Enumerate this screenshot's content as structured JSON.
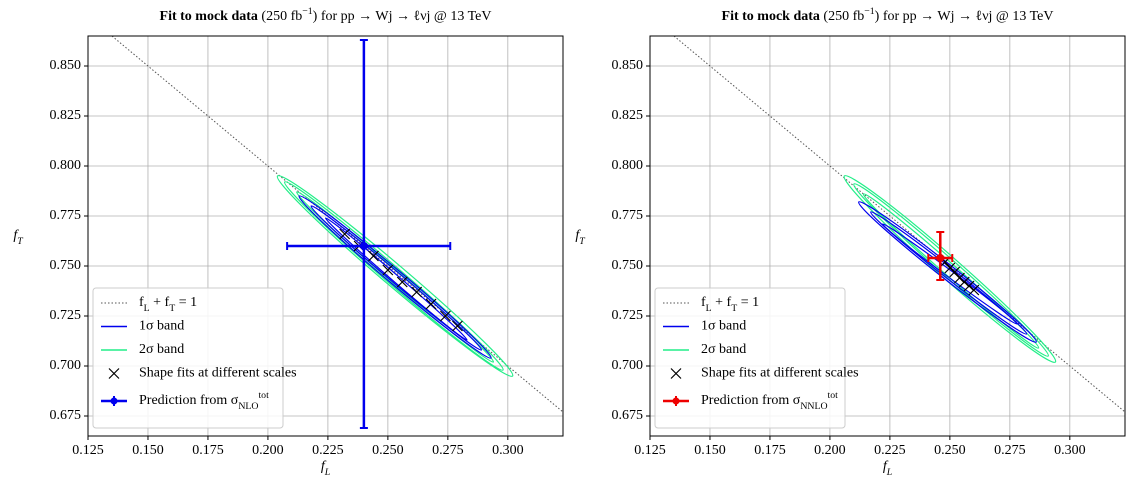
{
  "chart_data": [
    {
      "type": "contour",
      "title": "Fit to mock data",
      "title_note": "(250 fb^{−1}) for pp → Wj → ℓνj @ 13 TeV",
      "x_label": "f_L",
      "y_label": "f_T",
      "xlim": [
        0.125,
        0.323
      ],
      "ylim": [
        0.665,
        0.865
      ],
      "xticks": [
        0.125,
        {
          "value": 0.15,
          "label": "0.150"
        },
        0.175,
        {
          "value": 0.2,
          "label": "0.200"
        },
        0.225,
        {
          "value": 0.25,
          "label": "0.250"
        },
        0.275,
        {
          "value": 0.3,
          "label": "0.300"
        }
      ],
      "yticks": [
        0.675,
        {
          "value": 0.7,
          "label": "0.700"
        },
        0.725,
        {
          "value": 0.75,
          "label": "0.750"
        },
        0.775,
        {
          "value": 0.8,
          "label": "0.800"
        },
        0.825,
        {
          "value": 0.85,
          "label": "0.850"
        }
      ],
      "grid": true,
      "legend": "lower left",
      "reference_line": {
        "name": "f_L + f_T = 1",
        "color": "#555555",
        "x": [
          0.135,
          0.323
        ],
        "values": [
          0.865,
          0.677
        ]
      },
      "contours": [
        {
          "name": "1σ band",
          "color": "#0000ee",
          "ellipses": [
            {
              "x": [
                0.213,
                0.293
              ],
              "y": [
                0.785,
                0.704
              ],
              "width": 0.003
            },
            {
              "x": [
                0.218,
                0.289
              ],
              "y": [
                0.78,
                0.708
              ],
              "width": 0.0022
            },
            {
              "x": [
                0.224,
                0.283
              ],
              "y": [
                0.774,
                0.713
              ],
              "width": 0.0014
            }
          ]
        },
        {
          "name": "2σ band",
          "color": "#22ee88",
          "ellipses": [
            {
              "x": [
                0.204,
                0.302
              ],
              "y": [
                0.795,
                0.695
              ],
              "width": 0.0045
            },
            {
              "x": [
                0.207,
                0.298
              ],
              "y": [
                0.792,
                0.698
              ],
              "width": 0.0035
            },
            {
              "x": [
                0.212,
                0.294
              ],
              "y": [
                0.787,
                0.702
              ],
              "width": 0.0025
            }
          ]
        }
      ],
      "scatter": {
        "name": "Shape fits at different scales",
        "color": "#000000",
        "x": [
          0.232,
          0.238,
          0.244,
          0.25,
          0.256,
          0.262,
          0.268,
          0.274,
          0.279
        ],
        "values": [
          0.766,
          0.76,
          0.755,
          0.748,
          0.742,
          0.737,
          0.731,
          0.725,
          0.72
        ]
      },
      "prediction": {
        "name": "Prediction from σ_{NLO}^{tot}",
        "color": "#0000ee",
        "x": 0.24,
        "xerr": [
          0.032,
          0.036
        ],
        "y": 0.76,
        "yerr": [
          0.091,
          0.103
        ]
      }
    },
    {
      "type": "contour",
      "title": "Fit to mock data",
      "title_note": "(250 fb^{−1}) for pp → Wj → ℓνj @ 13 TeV",
      "x_label": "f_L",
      "y_label": "f_T",
      "xlim": [
        0.125,
        0.323
      ],
      "ylim": [
        0.665,
        0.865
      ],
      "xticks": [
        0.125,
        {
          "value": 0.15,
          "label": "0.150"
        },
        0.175,
        {
          "value": 0.2,
          "label": "0.200"
        },
        0.225,
        {
          "value": 0.25,
          "label": "0.250"
        },
        0.275,
        {
          "value": 0.3,
          "label": "0.300"
        }
      ],
      "yticks": [
        0.675,
        {
          "value": 0.7,
          "label": "0.700"
        },
        0.725,
        {
          "value": 0.75,
          "label": "0.750"
        },
        0.775,
        {
          "value": 0.8,
          "label": "0.800"
        },
        0.825,
        {
          "value": 0.85,
          "label": "0.850"
        }
      ],
      "grid": true,
      "legend": "lower left",
      "reference_line": {
        "name": "f_L + f_T = 1",
        "color": "#555555",
        "x": [
          0.135,
          0.323
        ],
        "values": [
          0.865,
          0.677
        ]
      },
      "contours": [
        {
          "name": "1σ band",
          "color": "#0000ee",
          "ellipses": [
            {
              "x": [
                0.212,
                0.286
              ],
              "y": [
                0.782,
                0.712
              ],
              "width": 0.003
            },
            {
              "x": [
                0.217,
                0.282
              ],
              "y": [
                0.777,
                0.716
              ],
              "width": 0.0022
            },
            {
              "x": [
                0.222,
                0.278
              ],
              "y": [
                0.771,
                0.721
              ],
              "width": 0.0014
            }
          ]
        },
        {
          "name": "2σ band",
          "color": "#22ee88",
          "ellipses": [
            {
              "x": [
                0.206,
                0.294
              ],
              "y": [
                0.795,
                0.702
              ],
              "width": 0.0045
            },
            {
              "x": [
                0.21,
                0.291
              ],
              "y": [
                0.791,
                0.705
              ],
              "width": 0.0035
            },
            {
              "x": [
                0.214,
                0.287
              ],
              "y": [
                0.786,
                0.709
              ],
              "width": 0.0025
            }
          ]
        }
      ],
      "scatter": {
        "name": "Shape fits at different scales",
        "color": "#000000",
        "x": [
          0.248,
          0.25,
          0.252,
          0.254,
          0.256,
          0.258,
          0.26
        ],
        "values": [
          0.752,
          0.749,
          0.747,
          0.744,
          0.742,
          0.74,
          0.738
        ]
      },
      "prediction": {
        "name": "Prediction from σ_{NNLO}^{tot}",
        "color": "#ee0000",
        "x": 0.246,
        "xerr": [
          0.005,
          0.005
        ],
        "y": 0.754,
        "yerr": [
          0.011,
          0.013
        ]
      }
    }
  ]
}
